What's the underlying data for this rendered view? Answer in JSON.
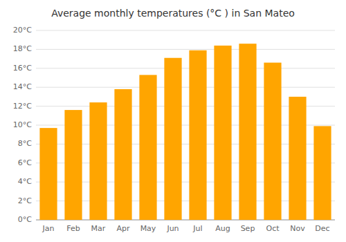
{
  "chart_data": {
    "type": "bar",
    "title": "Average monthly temperatures (°C ) in San Mateo",
    "categories": [
      "Jan",
      "Feb",
      "Mar",
      "Apr",
      "May",
      "Jun",
      "Jul",
      "Aug",
      "Sep",
      "Oct",
      "Nov",
      "Dec"
    ],
    "values": [
      9.7,
      11.6,
      12.4,
      13.8,
      15.3,
      17.1,
      17.9,
      18.4,
      18.6,
      16.6,
      13.0,
      9.9
    ],
    "color": "#FFA500",
    "ylim": [
      0,
      20
    ],
    "yticks": [
      {
        "value": 0,
        "label": "0°C"
      },
      {
        "value": 2,
        "label": "2°C"
      },
      {
        "value": 4,
        "label": "4°C"
      },
      {
        "value": 6,
        "label": "6°C"
      },
      {
        "value": 8,
        "label": "8°C"
      },
      {
        "value": 10,
        "label": "10°C"
      },
      {
        "value": 12,
        "label": "12°C"
      },
      {
        "value": 14,
        "label": "14°C"
      },
      {
        "value": 16,
        "label": "16°C"
      },
      {
        "value": 18,
        "label": "18°C"
      },
      {
        "value": 20,
        "label": "20°C"
      }
    ],
    "grid": true
  }
}
